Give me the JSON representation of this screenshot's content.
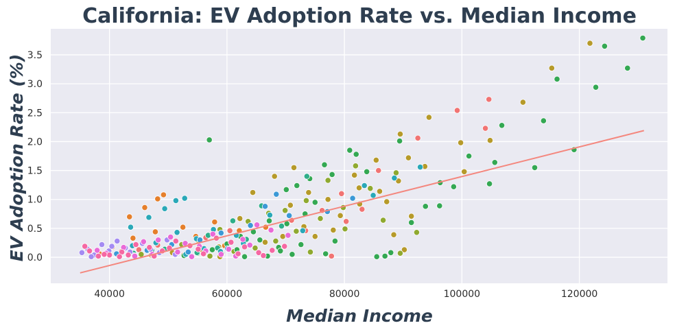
{
  "chart_data": {
    "type": "scatter",
    "title": "California: EV Adoption Rate vs. Median Income",
    "xlabel": "Median Income",
    "ylabel": "EV Adoption Rate (%)",
    "xlim": [
      30000,
      135000
    ],
    "ylim": [
      -0.45,
      3.95
    ],
    "x_ticks": [
      40000,
      60000,
      80000,
      100000,
      120000
    ],
    "y_ticks": [
      0.0,
      0.5,
      1.0,
      1.5,
      2.0,
      2.5,
      3.0,
      3.5
    ],
    "grid": true,
    "legend": "none",
    "colors": {
      "background": "#eaeaf2",
      "trendline": "#f4877e",
      "title": "#2e3e50",
      "palette": [
        "#f17473",
        "#e57f2b",
        "#b69a2a",
        "#8fa930",
        "#34a853",
        "#2fae8a",
        "#2aa8b8",
        "#3c99d6",
        "#a48bf2",
        "#e96ad7",
        "#f568a3"
      ]
    },
    "trendline": {
      "x": [
        35000,
        131000
      ],
      "y": [
        -0.27,
        2.19
      ]
    },
    "point_groups": [
      {
        "color_index": 0,
        "points": [
          [
            99200,
            2.54
          ],
          [
            104600,
            2.73
          ],
          [
            92500,
            2.06
          ],
          [
            79500,
            1.1
          ],
          [
            71000,
            0.64
          ],
          [
            60500,
            0.46
          ],
          [
            48200,
            0.21
          ],
          [
            37500,
            0.05
          ],
          [
            85800,
            1.5
          ],
          [
            76200,
            0.81
          ],
          [
            80300,
            0.62
          ],
          [
            83000,
            0.83
          ],
          [
            56400,
            0.34
          ],
          [
            45000,
            0.13
          ],
          [
            52600,
            0.04
          ],
          [
            77800,
            0.02
          ],
          [
            73400,
            0.46
          ],
          [
            104000,
            2.23
          ]
        ]
      },
      {
        "color_index": 1,
        "points": [
          [
            46000,
            0.86
          ],
          [
            49200,
            1.08
          ],
          [
            48200,
            1.01
          ],
          [
            43400,
            0.7
          ],
          [
            52500,
            0.52
          ],
          [
            44000,
            0.33
          ],
          [
            62100,
            0.46
          ],
          [
            40500,
            0.18
          ],
          [
            57900,
            0.61
          ],
          [
            47800,
            0.44
          ],
          [
            38300,
            0.06
          ],
          [
            50500,
            0.2
          ],
          [
            54700,
            0.36
          ],
          [
            42000,
            0.1
          ],
          [
            66600,
            0.52
          ],
          [
            59600,
            0.2
          ]
        ]
      },
      {
        "color_index": 2,
        "points": [
          [
            121800,
            3.7
          ],
          [
            115300,
            3.27
          ],
          [
            110400,
            2.68
          ],
          [
            94400,
            2.42
          ],
          [
            89500,
            2.13
          ],
          [
            104800,
            2.02
          ],
          [
            99800,
            1.98
          ],
          [
            100400,
            1.48
          ],
          [
            90900,
            1.72
          ],
          [
            93700,
            1.57
          ],
          [
            71400,
            1.55
          ],
          [
            85400,
            1.68
          ],
          [
            81700,
            1.42
          ],
          [
            89200,
            1.32
          ],
          [
            73900,
            1.12
          ],
          [
            68100,
            1.4
          ],
          [
            82500,
            1.2
          ],
          [
            86000,
            1.14
          ],
          [
            77200,
            1.0
          ],
          [
            64400,
            1.12
          ],
          [
            70800,
            0.9
          ],
          [
            79300,
            0.72
          ],
          [
            62200,
            0.67
          ],
          [
            73100,
            0.53
          ],
          [
            88400,
            0.39
          ],
          [
            75000,
            0.36
          ],
          [
            66500,
            0.26
          ],
          [
            58600,
            0.18
          ],
          [
            55600,
            0.12
          ],
          [
            50700,
            0.08
          ],
          [
            47100,
            0.04
          ],
          [
            91400,
            0.71
          ],
          [
            90200,
            0.13
          ],
          [
            87200,
            0.96
          ],
          [
            82600,
            0.92
          ],
          [
            69500,
            0.36
          ],
          [
            58800,
            0.01
          ],
          [
            78100,
            0.47
          ]
        ]
      },
      {
        "color_index": 3,
        "points": [
          [
            81900,
            1.58
          ],
          [
            77200,
            1.33
          ],
          [
            73500,
            0.98
          ],
          [
            69900,
            0.81
          ],
          [
            67100,
            0.76
          ],
          [
            63600,
            0.62
          ],
          [
            58800,
            0.48
          ],
          [
            55000,
            0.3
          ],
          [
            52300,
            0.22
          ],
          [
            49700,
            0.14
          ],
          [
            45400,
            0.05
          ],
          [
            88800,
            1.46
          ],
          [
            84400,
            1.19
          ],
          [
            79800,
            0.86
          ],
          [
            75900,
            0.67
          ],
          [
            71800,
            0.45
          ],
          [
            68300,
            0.28
          ],
          [
            64800,
            0.16
          ],
          [
            61200,
            0.1
          ],
          [
            57100,
            0.02
          ],
          [
            86600,
            0.64
          ],
          [
            89500,
            0.07
          ],
          [
            74200,
            0.09
          ],
          [
            66100,
            0.04
          ],
          [
            92300,
            0.43
          ],
          [
            80100,
            0.49
          ]
        ]
      },
      {
        "color_index": 4,
        "points": [
          [
            130800,
            3.79
          ],
          [
            124300,
            3.65
          ],
          [
            116200,
            3.08
          ],
          [
            122800,
            2.94
          ],
          [
            128200,
            3.27
          ],
          [
            113900,
            2.36
          ],
          [
            106800,
            2.28
          ],
          [
            101200,
            1.75
          ],
          [
            105600,
            1.64
          ],
          [
            112400,
            1.55
          ],
          [
            119100,
            1.86
          ],
          [
            104700,
            1.27
          ],
          [
            96300,
            1.29
          ],
          [
            98600,
            1.22
          ],
          [
            96200,
            0.89
          ],
          [
            93800,
            0.88
          ],
          [
            91400,
            0.6
          ],
          [
            89400,
            2.01
          ],
          [
            57000,
            2.03
          ],
          [
            80900,
            1.85
          ],
          [
            82000,
            1.78
          ],
          [
            76600,
            1.6
          ],
          [
            74100,
            1.36
          ],
          [
            71900,
            1.24
          ],
          [
            70100,
            1.17
          ],
          [
            77900,
            1.43
          ],
          [
            83800,
            1.48
          ],
          [
            75000,
            0.95
          ],
          [
            73300,
            0.75
          ],
          [
            70200,
            0.58
          ],
          [
            67200,
            0.63
          ],
          [
            64500,
            0.44
          ],
          [
            62300,
            0.36
          ],
          [
            60000,
            0.23
          ],
          [
            57500,
            0.13
          ],
          [
            55000,
            0.07
          ],
          [
            52700,
            0.03
          ],
          [
            85500,
            0.01
          ],
          [
            86900,
            0.02
          ],
          [
            87900,
            0.08
          ],
          [
            66900,
            0.02
          ],
          [
            63000,
            0.01
          ],
          [
            68800,
            0.17
          ],
          [
            72600,
            0.22
          ],
          [
            76800,
            0.06
          ],
          [
            78400,
            0.28
          ],
          [
            71100,
            0.05
          ],
          [
            69100,
            0.11
          ],
          [
            65600,
            0.3
          ],
          [
            61700,
            0.13
          ],
          [
            59100,
            0.06
          ]
        ]
      },
      {
        "color_index": 5,
        "points": [
          [
            73600,
            1.4
          ],
          [
            65900,
            0.89
          ],
          [
            61000,
            0.63
          ],
          [
            56800,
            0.38
          ],
          [
            53600,
            0.2
          ],
          [
            49400,
            0.14
          ],
          [
            44100,
            0.07
          ],
          [
            41600,
            0.03
          ],
          [
            69300,
            0.54
          ],
          [
            63300,
            0.31
          ],
          [
            58400,
            0.16
          ],
          [
            54900,
            0.08
          ],
          [
            47200,
            0.12
          ]
        ]
      },
      {
        "color_index": 6,
        "points": [
          [
            51300,
            0.98
          ],
          [
            52800,
            1.02
          ],
          [
            49400,
            0.84
          ],
          [
            43600,
            0.52
          ],
          [
            46700,
            0.69
          ],
          [
            57700,
            0.48
          ],
          [
            51500,
            0.43
          ],
          [
            54800,
            0.32
          ],
          [
            47900,
            0.25
          ],
          [
            61600,
            0.38
          ],
          [
            43900,
            0.2
          ],
          [
            56100,
            0.15
          ],
          [
            39800,
            0.1
          ],
          [
            53000,
            0.05
          ],
          [
            88500,
            1.37
          ],
          [
            92900,
            1.56
          ],
          [
            84900,
            1.07
          ],
          [
            83400,
            1.24
          ],
          [
            67300,
            0.73
          ],
          [
            72900,
            0.46
          ],
          [
            62800,
            0.24
          ],
          [
            58900,
            0.1
          ]
        ]
      },
      {
        "color_index": 7,
        "points": [
          [
            68400,
            1.09
          ],
          [
            66500,
            0.88
          ],
          [
            70600,
            0.72
          ],
          [
            64000,
            0.55
          ],
          [
            59000,
            0.42
          ],
          [
            55400,
            0.3
          ],
          [
            50600,
            0.22
          ],
          [
            46400,
            0.12
          ],
          [
            41200,
            0.06
          ],
          [
            81400,
            1.02
          ],
          [
            77100,
            0.79
          ],
          [
            60100,
            0.15
          ],
          [
            53400,
            0.09
          ]
        ]
      },
      {
        "color_index": 8,
        "points": [
          [
            35300,
            0.08
          ],
          [
            36300,
            0.14
          ],
          [
            37400,
            0.04
          ],
          [
            38700,
            0.22
          ],
          [
            39900,
            0.11
          ],
          [
            41300,
            0.28
          ],
          [
            42700,
            0.16
          ],
          [
            44200,
            0.03
          ],
          [
            45600,
            0.24
          ],
          [
            47000,
            0.14
          ],
          [
            48500,
            0.08
          ],
          [
            49800,
            0.3
          ],
          [
            51200,
            0.05
          ],
          [
            36900,
            0.01
          ],
          [
            40400,
            0.19
          ],
          [
            43500,
            0.09
          ]
        ]
      },
      {
        "color_index": 9,
        "points": [
          [
            45800,
            0.27
          ],
          [
            48300,
            0.3
          ],
          [
            50400,
            0.35
          ],
          [
            52900,
            0.24
          ],
          [
            55300,
            0.19
          ],
          [
            57600,
            0.4
          ],
          [
            60300,
            0.14
          ],
          [
            62700,
            0.31
          ],
          [
            65100,
            0.56
          ],
          [
            67500,
            0.47
          ],
          [
            42400,
            0.17
          ],
          [
            39400,
            0.07
          ],
          [
            37900,
            0.12
          ],
          [
            47300,
            0.05
          ],
          [
            51600,
            0.09
          ],
          [
            54000,
            0.01
          ],
          [
            59000,
            0.05
          ],
          [
            63900,
            0.21
          ],
          [
            56400,
            0.11
          ],
          [
            44300,
            0.02
          ],
          [
            61500,
            0.02
          ],
          [
            70400,
            0.38
          ]
        ]
      },
      {
        "color_index": 10,
        "points": [
          [
            35800,
            0.19
          ],
          [
            38100,
            0.02
          ],
          [
            40000,
            0.04
          ],
          [
            42100,
            0.09
          ],
          [
            44500,
            0.22
          ],
          [
            46800,
            0.17
          ],
          [
            49000,
            0.11
          ],
          [
            51300,
            0.28
          ],
          [
            53700,
            0.2
          ],
          [
            56000,
            0.06
          ],
          [
            58200,
            0.33
          ],
          [
            60700,
            0.26
          ],
          [
            63000,
            0.18
          ],
          [
            65400,
            0.08
          ],
          [
            67700,
            0.12
          ],
          [
            36600,
            0.11
          ],
          [
            39100,
            0.05
          ],
          [
            41700,
            0.01
          ],
          [
            43200,
            0.04
          ],
          [
            47600,
            0.02
          ],
          [
            50200,
            0.16
          ],
          [
            55100,
            0.14
          ],
          [
            61900,
            0.06
          ],
          [
            66200,
            0.03
          ],
          [
            69800,
            0.19
          ]
        ]
      }
    ]
  }
}
